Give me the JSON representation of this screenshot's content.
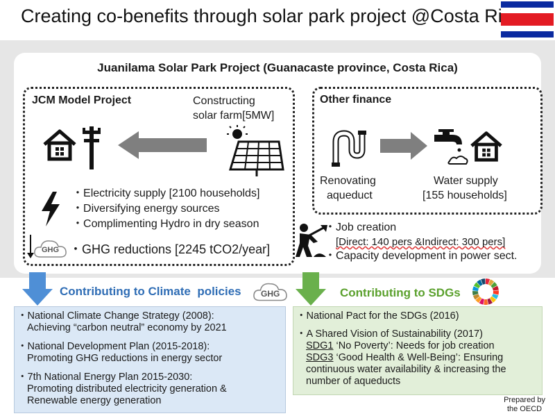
{
  "title": "Creating co-benefits through solar park project @Costa Rica",
  "project_title": "Juanilama Solar Park Project (Guanacaste province, Costa Rica)",
  "jcm": {
    "heading": "JCM Model Project",
    "solar_label_line1": "Constructing",
    "solar_label_line2": "solar farm[5MW]",
    "bullets": [
      "Electricity supply [2100 households]",
      "Diversifying energy sources",
      "Complimenting Hydro in dry season"
    ],
    "ghg_reduction": "GHG reductions [2245 tCO2/year]",
    "ghg_icon_label": "GHG"
  },
  "other": {
    "heading": "Other finance",
    "left_line1": "Renovating",
    "left_line2": "aqueduct",
    "right_line1": "Water supply",
    "right_line2": "[155 households]"
  },
  "jobs": {
    "line1": "Job creation",
    "line2": "[Direct: 140 pers &Indirect: 300 pers]",
    "line3": "Capacity development in power sect."
  },
  "contrib_climate": "Contributing to Climate  policies",
  "contrib_climate_icon": "GHG",
  "contrib_sdgs": "Contributing to SDGs",
  "climate_items": [
    {
      "line1": "National Climate Change Strategy (2008):",
      "line2": "Achieving “carbon neutral” economy by 2021"
    },
    {
      "line1": "National Development Plan (2015-2018):",
      "line2": "Promoting GHG reductions in energy sector"
    },
    {
      "line1": "7th National Energy Plan 2015-2030:",
      "line2": "Promoting distributed electricity generation &",
      "line3": "Renewable energy generation"
    }
  ],
  "sdg_items": {
    "pact": "National Pact for the SDGs (2016)",
    "vision": "A Shared Vision of Sustainability (2017)",
    "sdg1_code": "SDG1",
    "sdg1_text": " ‘No Poverty’: Needs for job creation",
    "sdg3_code": "SDG3",
    "sdg3_text": " ‘Good Health & Well-Being’: Ensuring",
    "sdg3_line2": "continuous water availability & increasing the",
    "sdg3_line3": "number of aqueducts"
  },
  "prepared_line1": "Prepared by",
  "prepared_line2": "the OECD",
  "colors": {
    "flag_blue": "#0a2aa0",
    "flag_red": "#e31b23",
    "arrow_blue": "#4f8fd6",
    "arrow_green": "#6ab04c",
    "arrow_grey": "#7f7f7f",
    "climate_text": "#2f6db5",
    "sdg_text": "#5aa02c"
  }
}
